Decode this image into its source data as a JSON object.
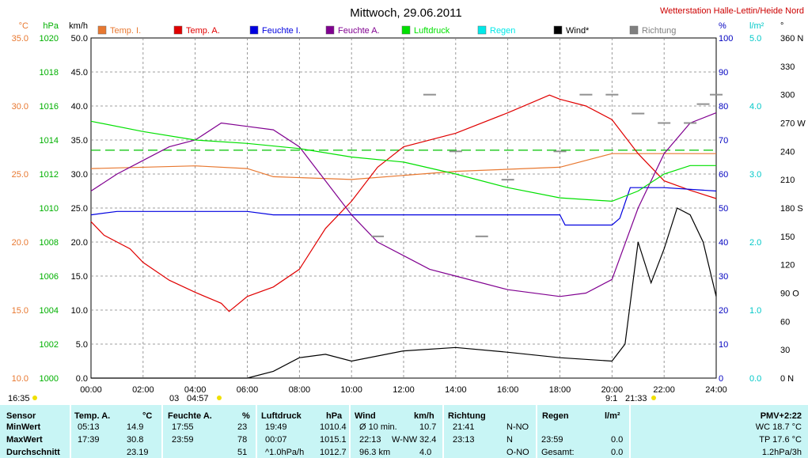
{
  "title": "Mittwoch, 29.06.2011",
  "station": "Wetterstation Halle-Lettin/Heide Nord",
  "axes": {
    "temp": {
      "unit": "°C",
      "ticks": [
        "35.0",
        "30.0",
        "25.0",
        "20.0",
        "15.0",
        "10.0"
      ],
      "color": "#e87830"
    },
    "hpa": {
      "unit": "hPa",
      "ticks": [
        "1020",
        "1018",
        "1016",
        "1014",
        "1012",
        "1010",
        "1008",
        "1006",
        "1004",
        "1002",
        "1000"
      ],
      "color": "#00b000"
    },
    "kmh": {
      "unit": "km/h",
      "ticks": [
        "50.0",
        "45.0",
        "40.0",
        "35.0",
        "30.0",
        "25.0",
        "20.0",
        "15.0",
        "10.0",
        "5.0",
        "0.0"
      ],
      "color": "#000000"
    },
    "pct": {
      "unit": "%",
      "ticks": [
        "100",
        "90",
        "80",
        "70",
        "60",
        "50",
        "40",
        "30",
        "20",
        "10",
        "0"
      ],
      "color": "#0000c0"
    },
    "rain": {
      "unit": "l/m²",
      "ticks": [
        "5.0",
        "4.0",
        "3.0",
        "2.0",
        "1.0",
        "0.0"
      ],
      "color": "#00c8c8"
    },
    "dir": {
      "unit": "°",
      "ticks": [
        "360 N",
        "330",
        "300",
        "270 W",
        "240",
        "210",
        "180 S",
        "150",
        "120",
        "90 O",
        "60",
        "30",
        "0 N"
      ],
      "color": "#000000"
    },
    "x": [
      "00:00",
      "02:00",
      "04:00",
      "06:00",
      "08:00",
      "10:00",
      "12:00",
      "14:00",
      "16:00",
      "18:00",
      "20:00",
      "22:00",
      "24:00"
    ]
  },
  "legend": [
    {
      "label": "Temp. I.",
      "color": "#e87830"
    },
    {
      "label": "Temp. A.",
      "color": "#e00000"
    },
    {
      "label": "Feuchte I.",
      "color": "#0000e0"
    },
    {
      "label": "Feuchte A.",
      "color": "#800090"
    },
    {
      "label": "Luftdruck",
      "color": "#00e000"
    },
    {
      "label": "Regen",
      "color": "#00e8e8"
    },
    {
      "label": "Wind*",
      "color": "#000000"
    },
    {
      "label": "Richtung",
      "color": "#808080"
    }
  ],
  "markers": {
    "sunrise": "16:35",
    "left_a": "03",
    "left_b": "04:57",
    "right_a": "21:33",
    "right_b": "9:1"
  },
  "chart_data": {
    "type": "line",
    "title": "Mittwoch, 29.06.2011",
    "xlim_hours": [
      0,
      24
    ],
    "dashed_reference_hpa": 1013.4,
    "series": [
      {
        "name": "Temp. I.",
        "unit": "°C",
        "points": [
          [
            0,
            25.4
          ],
          [
            4,
            25.6
          ],
          [
            6,
            25.4
          ],
          [
            7,
            24.8
          ],
          [
            10,
            24.6
          ],
          [
            14,
            25.2
          ],
          [
            18,
            25.5
          ],
          [
            20,
            26.5
          ],
          [
            22,
            26.5
          ],
          [
            24,
            26.5
          ]
        ]
      },
      {
        "name": "Temp. A.",
        "unit": "°C",
        "points": [
          [
            0,
            21.5
          ],
          [
            0.5,
            20.5
          ],
          [
            1.5,
            19.5
          ],
          [
            2,
            18.5
          ],
          [
            3,
            17.2
          ],
          [
            4,
            16.3
          ],
          [
            5,
            15.5
          ],
          [
            5.3,
            14.9
          ],
          [
            6,
            16.0
          ],
          [
            7,
            16.7
          ],
          [
            8,
            18.0
          ],
          [
            9,
            21.0
          ],
          [
            10,
            23.0
          ],
          [
            11,
            25.5
          ],
          [
            12,
            27.0
          ],
          [
            14,
            28.0
          ],
          [
            16,
            29.5
          ],
          [
            17.6,
            30.8
          ],
          [
            18,
            30.5
          ],
          [
            19,
            30.0
          ],
          [
            20,
            29.0
          ],
          [
            21,
            26.5
          ],
          [
            22,
            24.5
          ],
          [
            23,
            23.8
          ],
          [
            24,
            23.2
          ]
        ]
      },
      {
        "name": "Feuchte I.",
        "unit": "%",
        "points": [
          [
            0,
            48
          ],
          [
            1,
            49
          ],
          [
            6,
            49
          ],
          [
            7,
            48
          ],
          [
            18,
            48
          ],
          [
            18.2,
            45
          ],
          [
            20,
            45
          ],
          [
            20.3,
            47
          ],
          [
            20.7,
            56
          ],
          [
            22,
            56
          ],
          [
            24,
            55
          ]
        ]
      },
      {
        "name": "Feuchte A.",
        "unit": "%",
        "points": [
          [
            0,
            55
          ],
          [
            1,
            60
          ],
          [
            2,
            64
          ],
          [
            3,
            68
          ],
          [
            4,
            70
          ],
          [
            5,
            75
          ],
          [
            6,
            74
          ],
          [
            7,
            73
          ],
          [
            8,
            68
          ],
          [
            9,
            58
          ],
          [
            10,
            48
          ],
          [
            11,
            40
          ],
          [
            12,
            36
          ],
          [
            13,
            32
          ],
          [
            14,
            30
          ],
          [
            16,
            26
          ],
          [
            18,
            24
          ],
          [
            19,
            25
          ],
          [
            20,
            29
          ],
          [
            21,
            50
          ],
          [
            22,
            66
          ],
          [
            23,
            75
          ],
          [
            24,
            78
          ]
        ]
      },
      {
        "name": "Luftdruck",
        "unit": "hPa",
        "points": [
          [
            0,
            1015.1
          ],
          [
            2,
            1014.5
          ],
          [
            4,
            1014.0
          ],
          [
            6,
            1013.8
          ],
          [
            8,
            1013.5
          ],
          [
            10,
            1013.0
          ],
          [
            12,
            1012.7
          ],
          [
            14,
            1012.0
          ],
          [
            16,
            1011.2
          ],
          [
            18,
            1010.6
          ],
          [
            20,
            1010.4
          ],
          [
            21,
            1011.0
          ],
          [
            22,
            1012.0
          ],
          [
            23,
            1012.5
          ],
          [
            24,
            1012.5
          ]
        ]
      },
      {
        "name": "Wind*",
        "unit": "km/h",
        "points": [
          [
            0,
            0
          ],
          [
            6,
            0
          ],
          [
            7,
            1
          ],
          [
            8,
            3
          ],
          [
            9,
            3.5
          ],
          [
            10,
            2.5
          ],
          [
            12,
            4
          ],
          [
            14,
            4.5
          ],
          [
            16,
            3.8
          ],
          [
            18,
            3.0
          ],
          [
            20,
            2.5
          ],
          [
            20.5,
            5
          ],
          [
            21,
            20
          ],
          [
            21.5,
            14
          ],
          [
            22,
            19
          ],
          [
            22.5,
            25
          ],
          [
            23,
            24
          ],
          [
            23.5,
            20
          ],
          [
            24,
            12
          ]
        ]
      },
      {
        "name": "Richtung",
        "unit": "°",
        "style": "dots",
        "points": [
          [
            11,
            150
          ],
          [
            13,
            300
          ],
          [
            14,
            240
          ],
          [
            15,
            150
          ],
          [
            16,
            210
          ],
          [
            18,
            240
          ],
          [
            19,
            300
          ],
          [
            20,
            300
          ],
          [
            21,
            280
          ],
          [
            22,
            270
          ],
          [
            23,
            270
          ],
          [
            23.5,
            290
          ],
          [
            24,
            300
          ]
        ]
      }
    ]
  },
  "table": {
    "headers": [
      {
        "label": "Sensor"
      },
      {
        "label": "Temp. A.",
        "unit": "°C"
      },
      {
        "label": "Feuchte A.",
        "unit": "%"
      },
      {
        "label": "Luftdruck",
        "unit": "hPa"
      },
      {
        "label": "Wind",
        "unit": "km/h"
      },
      {
        "label": "Richtung"
      },
      {
        "label": "Regen",
        "unit": "l/m²"
      },
      {
        "label": "PMV+2:22"
      }
    ],
    "rows": [
      {
        "label": "MinWert",
        "t_time": "05:13",
        "t_val": "14.9",
        "h_time": "17:55",
        "h_val": "23",
        "p_time": "19:49",
        "p_val": "1010.4",
        "w_time": "Ø 10 min.",
        "w_val": "10.7",
        "d_time": "21:41",
        "d_val": "N-NO",
        "r_time": "",
        "r_val": "",
        "pmv": "WC 18.7 °C"
      },
      {
        "label": "MaxWert",
        "t_time": "17:39",
        "t_val": "30.8",
        "h_time": "23:59",
        "h_val": "78",
        "p_time": "00:07",
        "p_val": "1015.1",
        "w_time": "22:13",
        "w_dir": "W-NW",
        "w_val": "32.4",
        "d_time": "23:13",
        "d_val": "N",
        "r_time": "23:59",
        "r_val": "0.0",
        "pmv": "TP 17.6 °C"
      },
      {
        "label": "Durchschnitt",
        "t_time": "",
        "t_val": "23.19",
        "h_time": "",
        "h_val": "51",
        "p_time": "^1.0hPa/h",
        "p_val": "1012.7",
        "w_time": "96.3 km",
        "w_val": "4.0",
        "d_time": "",
        "d_val": "O-NO",
        "r_time": "Gesamt:",
        "r_val": "0.0",
        "pmv": "1.2hPa/3h"
      }
    ]
  }
}
